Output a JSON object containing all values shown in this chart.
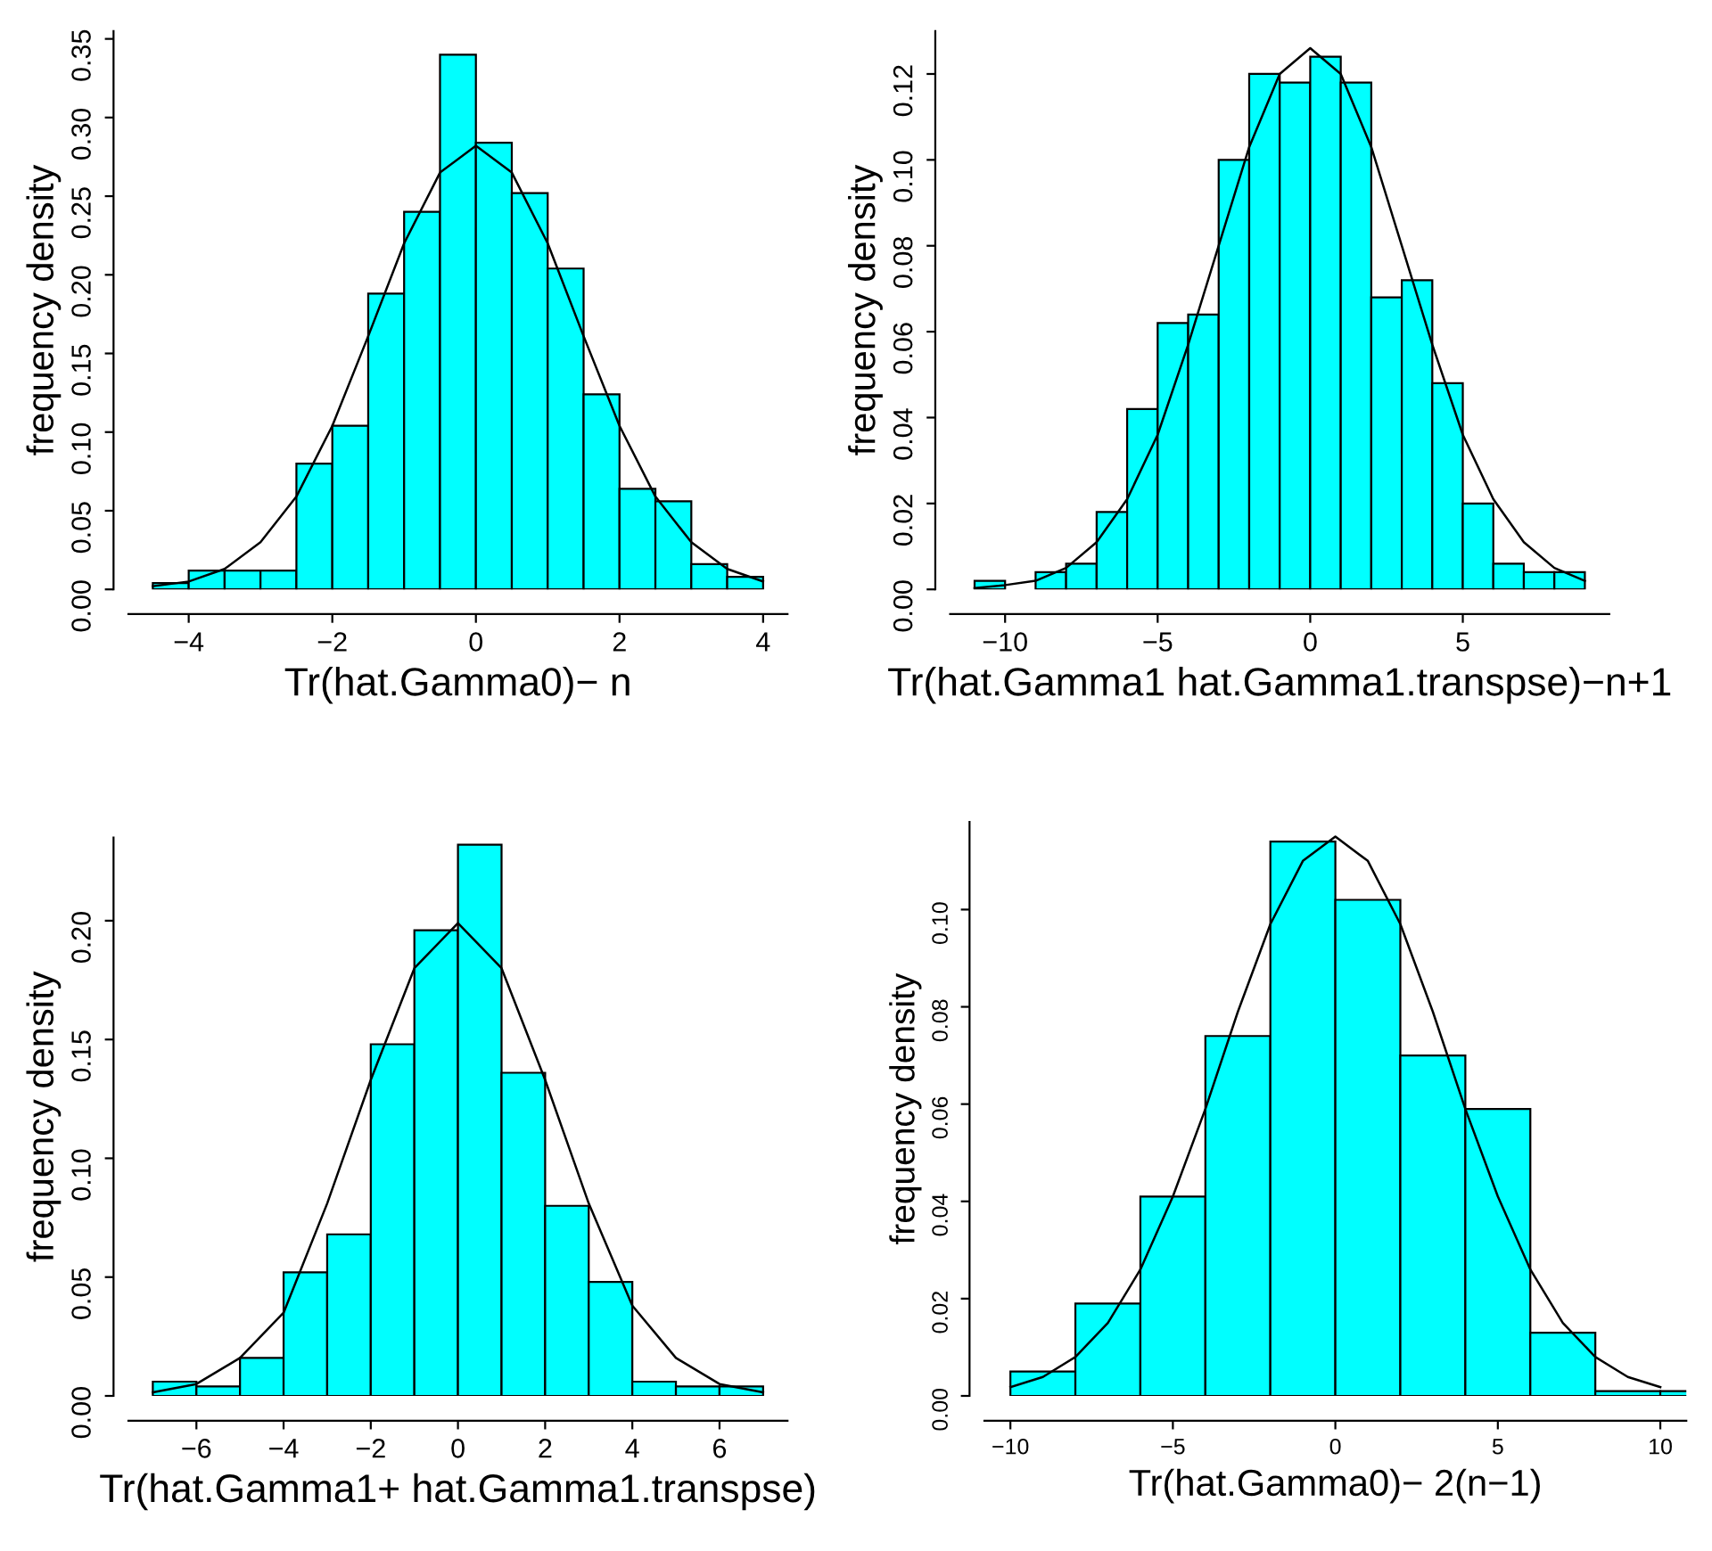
{
  "chart_data": [
    {
      "type": "histogram",
      "xlabel": "Tr(hat.Gamma0)− n",
      "ylabel": "frequency density",
      "xlim": [
        -4.84,
        4.34
      ],
      "ylim": [
        0,
        0.355
      ],
      "xticks": [
        -4,
        -2,
        0,
        2,
        4
      ],
      "yticks": [
        {
          "value": 0,
          "label": "0.00"
        },
        {
          "value": 0.05,
          "label": "0.05"
        },
        {
          "value": 0.1,
          "label": "0.10"
        },
        {
          "value": 0.15,
          "label": "0.15"
        },
        {
          "value": 0.2,
          "label": "0.20"
        },
        {
          "value": 0.25,
          "label": "0.25"
        },
        {
          "value": 0.3,
          "label": "0.30"
        },
        {
          "value": 0.35,
          "label": "0.35"
        }
      ],
      "grid": false,
      "legend": false,
      "series": [
        {
          "color": "#00ffff",
          "bins": [
            -4.5,
            -4,
            -3.5,
            -3,
            -2.5,
            -2,
            -1.5,
            -1,
            -0.5,
            0,
            0.5,
            1,
            1.5,
            2,
            2.5,
            3,
            3.5,
            4
          ],
          "values": [
            0.004,
            0.012,
            0.012,
            0.012,
            0.08,
            0.104,
            0.188,
            0.24,
            0.34,
            0.284,
            0.252,
            0.204,
            0.124,
            0.064,
            0.056,
            0.016,
            0.008
          ]
        },
        {
          "type": "line",
          "color": "#000000",
          "x": [
            -4.5,
            -4,
            -3.5,
            -3,
            -2.5,
            -2,
            -1.5,
            -1,
            -0.5,
            0,
            0.5,
            1,
            1.5,
            2,
            2.5,
            3,
            3.5,
            4
          ],
          "values": [
            0.002,
            0.005,
            0.013,
            0.03,
            0.059,
            0.104,
            0.161,
            0.22,
            0.265,
            0.282,
            0.265,
            0.22,
            0.161,
            0.104,
            0.059,
            0.03,
            0.013,
            0.005
          ]
        }
      ]
    },
    {
      "type": "histogram",
      "xlabel": "Tr(hat.Gamma1 hat.Gamma1.transpse)−n+1",
      "ylabel": "frequency density",
      "xlim": [
        -11.8,
        9.8
      ],
      "ylim": [
        0,
        0.13
      ],
      "xticks": [
        -10,
        -5,
        0,
        5
      ],
      "yticks": [
        {
          "value": 0,
          "label": "0.00"
        },
        {
          "value": 0.02,
          "label": "0.02"
        },
        {
          "value": 0.04,
          "label": "0.04"
        },
        {
          "value": 0.06,
          "label": "0.06"
        },
        {
          "value": 0.08,
          "label": "0.08"
        },
        {
          "value": 0.1,
          "label": "0.10"
        },
        {
          "value": 0.12,
          "label": "0.12"
        }
      ],
      "grid": false,
      "legend": false,
      "series": [
        {
          "color": "#00ffff",
          "bins": [
            -11,
            -10,
            -9,
            -8,
            -7,
            -6,
            -5,
            -4,
            -3,
            -2,
            -1,
            0,
            1,
            2,
            3,
            4,
            5,
            6,
            7,
            8,
            9
          ],
          "values": [
            0.002,
            null,
            0.004,
            0.006,
            0.018,
            0.042,
            0.062,
            0.064,
            0.1,
            0.12,
            0.118,
            0.124,
            0.118,
            0.068,
            0.072,
            0.048,
            0.02,
            0.006,
            0.004,
            0.004
          ]
        },
        {
          "type": "line",
          "color": "#000000",
          "x": [
            -11,
            -10,
            -9,
            -8,
            -7,
            -6,
            -5,
            -4,
            -3,
            -2,
            -1,
            0,
            1,
            2,
            3,
            4,
            5,
            6,
            7,
            8,
            9
          ],
          "values": [
            0.0003,
            0.001,
            0.002,
            0.005,
            0.011,
            0.021,
            0.036,
            0.057,
            0.08,
            0.103,
            0.12,
            0.126,
            0.12,
            0.103,
            0.08,
            0.057,
            0.036,
            0.021,
            0.011,
            0.005,
            0.002
          ]
        }
      ]
    },
    {
      "type": "histogram",
      "xlabel": "Tr(hat.Gamma1+ hat.Gamma1.transpse)",
      "ylabel": "frequency density",
      "xlim": [
        -7.56,
        7.56
      ],
      "ylim": [
        0,
        0.235
      ],
      "xticks": [
        -6,
        -4,
        -2,
        0,
        2,
        4,
        6
      ],
      "yticks": [
        {
          "value": 0,
          "label": "0.00"
        },
        {
          "value": 0.05,
          "label": "0.05"
        },
        {
          "value": 0.1,
          "label": "0.10"
        },
        {
          "value": 0.15,
          "label": "0.15"
        },
        {
          "value": 0.2,
          "label": "0.20"
        }
      ],
      "grid": false,
      "legend": false,
      "series": [
        {
          "color": "#00ffff",
          "bins": [
            -7,
            -6,
            -5,
            -4,
            -3,
            -2,
            -1,
            0,
            1,
            2,
            3,
            4,
            5,
            6,
            7
          ],
          "values": [
            0.006,
            0.004,
            0.016,
            0.052,
            0.068,
            0.148,
            0.196,
            0.232,
            0.136,
            0.08,
            0.048,
            0.006,
            0.004,
            0.004
          ]
        },
        {
          "type": "line",
          "color": "#000000",
          "x": [
            -7,
            -6,
            -5,
            -4,
            -3,
            -2,
            -1,
            0,
            1,
            2,
            3,
            4,
            5,
            6,
            7
          ],
          "values": [
            0.0015,
            0.005,
            0.016,
            0.035,
            0.081,
            0.133,
            0.18,
            0.199,
            0.18,
            0.133,
            0.081,
            0.038,
            0.016,
            0.005,
            0.0015
          ]
        }
      ]
    },
    {
      "type": "histogram",
      "xlabel": "Tr(hat.Gamma0)− 2(n−1)",
      "ylabel": "frequency density",
      "xlim": [
        -10.8,
        10.8
      ],
      "ylim": [
        0,
        0.118
      ],
      "xticks": [
        -10,
        -5,
        0,
        5,
        10
      ],
      "yticks": [
        {
          "value": 0,
          "label": "0.00"
        },
        {
          "value": 0.02,
          "label": "0.02"
        },
        {
          "value": 0.04,
          "label": "0.04"
        },
        {
          "value": 0.06,
          "label": "0.06"
        },
        {
          "value": 0.08,
          "label": "0.08"
        },
        {
          "value": 0.1,
          "label": "0.10"
        }
      ],
      "grid": false,
      "legend": false,
      "series": [
        {
          "color": "#00ffff",
          "bins": [
            -10,
            -8,
            -6,
            -4,
            -2,
            0,
            2,
            4,
            6,
            8,
            10,
            12
          ],
          "values": [
            0.005,
            0.019,
            0.041,
            0.074,
            0.114,
            0.102,
            0.07,
            0.059,
            0.013,
            0.001,
            0.001
          ]
        },
        {
          "type": "line",
          "color": "#000000",
          "x": [
            -10,
            -9,
            -8,
            -7,
            -6,
            -5,
            -4,
            -3,
            -2,
            -1,
            0,
            1,
            2,
            3,
            4,
            5,
            6,
            7,
            8,
            9,
            10
          ],
          "values": [
            0.0018,
            0.0039,
            0.008,
            0.015,
            0.026,
            0.041,
            0.059,
            0.079,
            0.097,
            0.11,
            0.115,
            0.11,
            0.097,
            0.079,
            0.059,
            0.041,
            0.026,
            0.015,
            0.008,
            0.0039,
            0.0018
          ]
        }
      ]
    }
  ]
}
